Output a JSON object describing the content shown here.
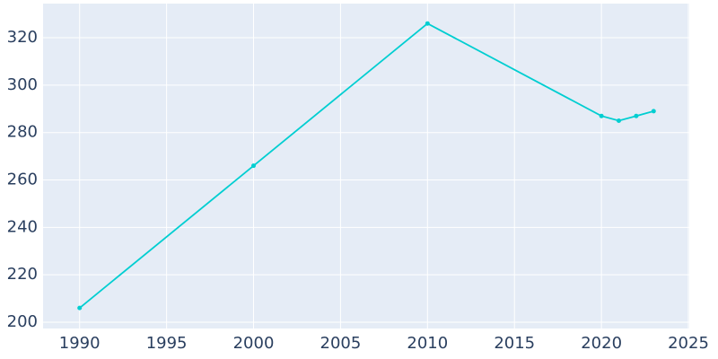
{
  "chart_data": {
    "type": "line",
    "x": [
      1990,
      2000,
      2010,
      2020,
      2021,
      2022,
      2023
    ],
    "series": [
      {
        "color": "#00ced1",
        "values": [
          206,
          266,
          326,
          287,
          285,
          287,
          289
        ]
      }
    ],
    "xlim": [
      1987.9,
      2025.05
    ],
    "xticks": [
      1990,
      1995,
      2000,
      2005,
      2010,
      2015,
      2020,
      2025
    ],
    "ylim": [
      197.35,
      334.4
    ],
    "yticks": [
      200,
      220,
      240,
      260,
      280,
      300,
      320
    ],
    "grid": true,
    "background": "#e5ecf6"
  }
}
